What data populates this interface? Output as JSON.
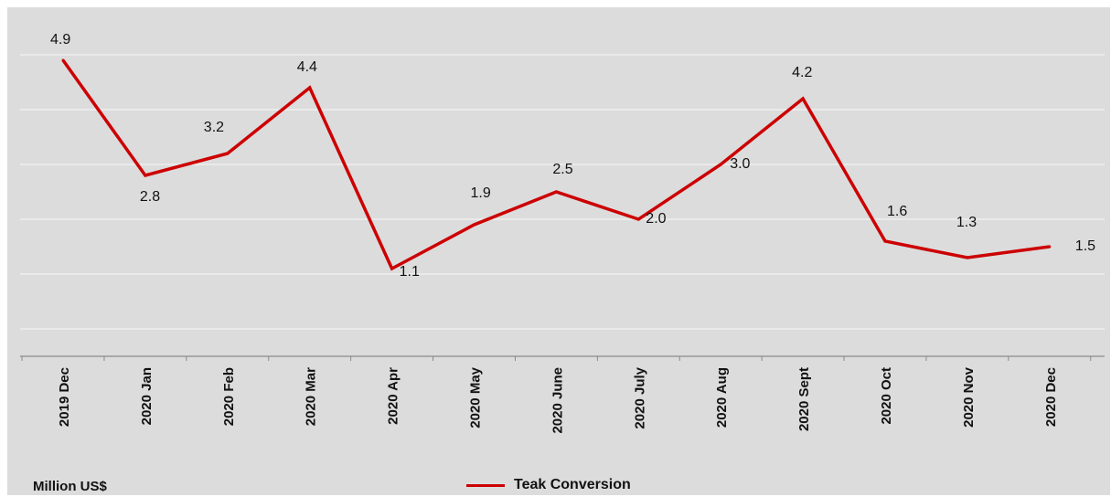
{
  "chart_data": {
    "type": "line",
    "categories": [
      "2019 Dec",
      "2020 Jan",
      "2020 Feb",
      "2020 Mar",
      "2020 Apr",
      "2020 May",
      "2020 June",
      "2020 July",
      "2020 Aug",
      "2020 Sept",
      "2020 Oct",
      "2020 Nov",
      "2020 Dec"
    ],
    "series": [
      {
        "name": "Teak Conversion",
        "values": [
          4.9,
          2.8,
          3.2,
          4.4,
          1.1,
          1.9,
          2.5,
          2.0,
          3.0,
          4.2,
          1.6,
          1.3,
          1.5
        ]
      }
    ],
    "data_labels": [
      "4.9",
      "2.8",
      "3.2",
      "4.4",
      "1.1",
      "1.9",
      "2.5",
      "2.0",
      "3.0",
      "4.2",
      "1.6",
      "1.3",
      "1.5"
    ],
    "unit_label": "Million US$",
    "ylim": [
      -0.5,
      5.5
    ],
    "grid": true,
    "legend_position": "bottom",
    "line_color": "#cc0000",
    "background_color": "#dcdcdc"
  }
}
